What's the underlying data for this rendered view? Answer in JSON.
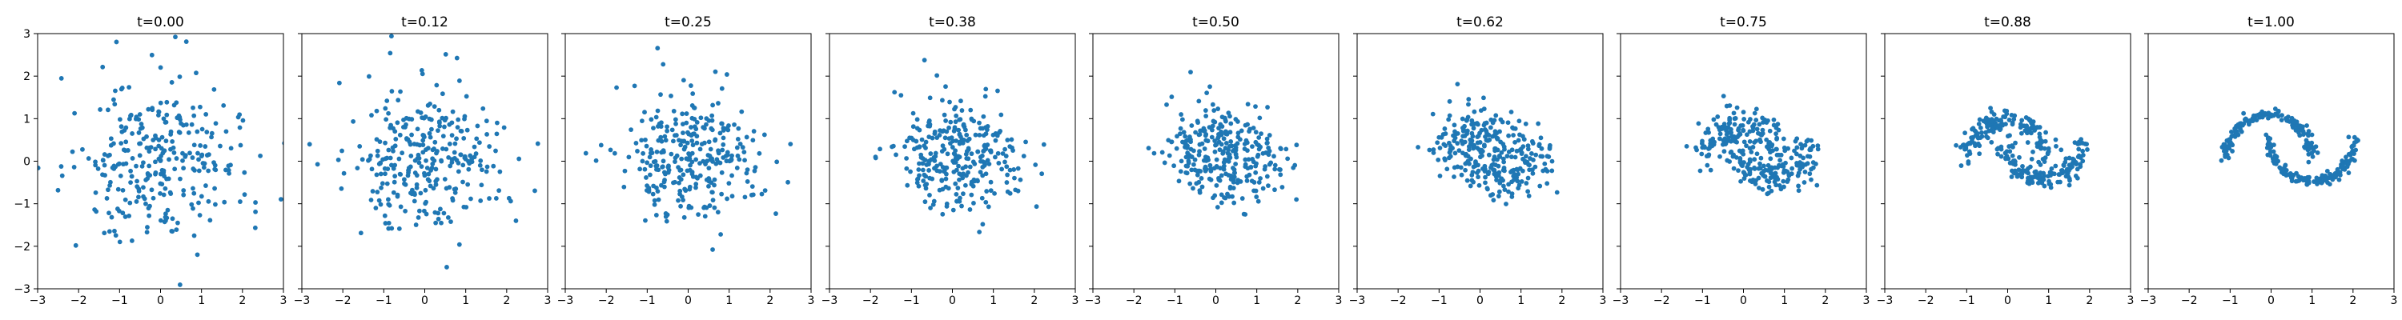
{
  "chart_data": {
    "type": "scatter",
    "point_color": "#1f77b4",
    "shared_y": true,
    "xlim": [
      -3,
      3
    ],
    "ylim": [
      -3,
      3
    ],
    "xticks": [
      -3,
      -2,
      -1,
      0,
      1,
      2,
      3
    ],
    "yticks": [
      -3,
      -2,
      -1,
      0,
      1,
      2,
      3
    ],
    "xtick_labels": [
      "−3",
      "−2",
      "−1",
      "0",
      "1",
      "2",
      "3"
    ],
    "ytick_labels": [
      "−3",
      "−2",
      "−1",
      "0",
      "1",
      "2",
      "3"
    ],
    "grid": false,
    "n_points": 300,
    "panels": [
      {
        "title": "t=0.00",
        "t": 0.0
      },
      {
        "title": "t=0.12",
        "t": 0.125
      },
      {
        "title": "t=0.25",
        "t": 0.25
      },
      {
        "title": "t=0.38",
        "t": 0.375
      },
      {
        "title": "t=0.50",
        "t": 0.5
      },
      {
        "title": "t=0.62",
        "t": 0.625
      },
      {
        "title": "t=0.75",
        "t": 0.75
      },
      {
        "title": "t=0.88",
        "t": 0.875
      },
      {
        "title": "t=1.00",
        "t": 1.0
      }
    ]
  }
}
